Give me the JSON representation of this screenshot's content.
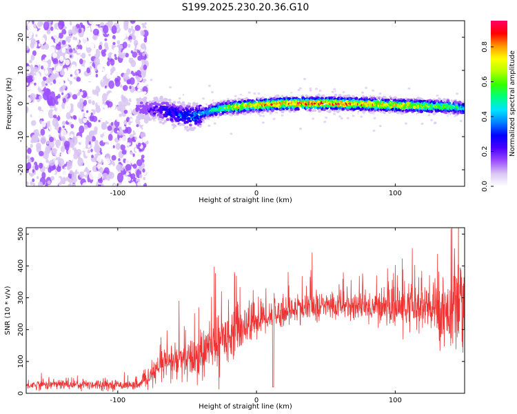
{
  "title": "S199.2025.230.20.36.G10",
  "chart_data": [
    {
      "type": "heatmap",
      "xlabel": "Height of straight line (km)",
      "ylabel": "Frequency (Hz)",
      "xlim": [
        -166,
        150
      ],
      "ylim": [
        -25,
        25
      ],
      "x_ticks": [
        -100,
        0,
        100
      ],
      "y_ticks": [
        -20,
        -10,
        0,
        10,
        20
      ],
      "colorbar": {
        "label": "Normalized spectral amplitude",
        "range": [
          0,
          0.95
        ],
        "ticks": [
          "0.0",
          "0.2",
          "0.4",
          "0.6",
          "0.8"
        ],
        "colors": [
          "#ffffff",
          "#d9c6f2",
          "#9b4dff",
          "#4b00ff",
          "#0000ff",
          "#0080ff",
          "#00e5ff",
          "#00ff80",
          "#33ff00",
          "#b3ff00",
          "#ffff00",
          "#ff9900",
          "#ff0000",
          "#ff0066"
        ]
      },
      "ridge": {
        "x": [
          -85,
          -75,
          -65,
          -55,
          -45,
          -35,
          -25,
          -15,
          0,
          20,
          40,
          60,
          80,
          100,
          120,
          140,
          150
        ],
        "frequency": [
          -1.5,
          -1.8,
          -2.2,
          -3.5,
          -4.0,
          -2.5,
          -1.5,
          -1.0,
          -0.5,
          0.0,
          0.0,
          0.0,
          -0.2,
          -0.5,
          -0.8,
          -1.0,
          -1.5
        ],
        "amplitude": [
          0.15,
          0.2,
          0.3,
          0.35,
          0.4,
          0.5,
          0.6,
          0.75,
          0.85,
          0.9,
          0.9,
          0.92,
          0.85,
          0.8,
          0.75,
          0.6,
          0.5
        ]
      },
      "noise_region_x": [
        -166,
        -83
      ]
    },
    {
      "type": "line",
      "xlabel": "Height of straight line (km)",
      "ylabel": "SNR (10 * v/v)",
      "xlim": [
        -166,
        150
      ],
      "ylim": [
        0,
        520
      ],
      "x_ticks": [
        -100,
        0,
        100
      ],
      "y_ticks": [
        0,
        100,
        200,
        300,
        400,
        500
      ],
      "color": "#ee3333",
      "series": [
        {
          "x": [
            -166,
            -150,
            -130,
            -110,
            -95,
            -85,
            -80,
            -75,
            -70,
            -65,
            -60,
            -55,
            -50,
            -45,
            -40,
            -35,
            -30,
            -25,
            -20,
            -15,
            -10,
            -5,
            0,
            5,
            10,
            15,
            20,
            30,
            40,
            50,
            60,
            70,
            80,
            90,
            100,
            110,
            120,
            130,
            140,
            145,
            150
          ],
          "mean": [
            25,
            28,
            28,
            28,
            26,
            25,
            40,
            60,
            80,
            95,
            100,
            105,
            100,
            110,
            120,
            140,
            150,
            170,
            190,
            200,
            210,
            220,
            230,
            240,
            245,
            250,
            255,
            265,
            270,
            275,
            275,
            275,
            270,
            275,
            270,
            270,
            265,
            265,
            260,
            255,
            250
          ],
          "spread": [
            12,
            15,
            15,
            15,
            12,
            12,
            20,
            30,
            40,
            50,
            60,
            60,
            60,
            70,
            70,
            80,
            80,
            80,
            80,
            70,
            70,
            60,
            60,
            50,
            50,
            45,
            45,
            40,
            40,
            40,
            40,
            40,
            45,
            50,
            60,
            70,
            80,
            90,
            110,
            130,
            130
          ],
          "dip": {
            "x": 12,
            "y": 20
          }
        }
      ]
    }
  ]
}
